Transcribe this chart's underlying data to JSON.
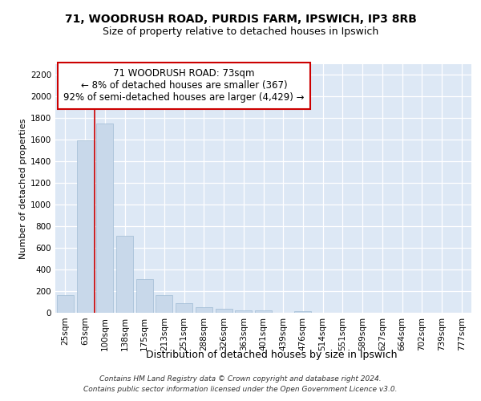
{
  "title1": "71, WOODRUSH ROAD, PURDIS FARM, IPSWICH, IP3 8RB",
  "title2": "Size of property relative to detached houses in Ipswich",
  "xlabel": "Distribution of detached houses by size in Ipswich",
  "ylabel": "Number of detached properties",
  "categories": [
    "25sqm",
    "63sqm",
    "100sqm",
    "138sqm",
    "175sqm",
    "213sqm",
    "251sqm",
    "288sqm",
    "326sqm",
    "363sqm",
    "401sqm",
    "439sqm",
    "476sqm",
    "514sqm",
    "551sqm",
    "589sqm",
    "627sqm",
    "664sqm",
    "702sqm",
    "739sqm",
    "777sqm"
  ],
  "values": [
    160,
    1595,
    1750,
    710,
    315,
    160,
    88,
    55,
    35,
    22,
    20,
    0,
    18,
    0,
    0,
    0,
    0,
    0,
    0,
    0,
    0
  ],
  "bar_color": "#c8d8ea",
  "bar_edge_color": "#a0bcd4",
  "vline_pos": 1.5,
  "vline_color": "#cc0000",
  "annotation_text": "71 WOODRUSH ROAD: 73sqm\n← 8% of detached houses are smaller (367)\n92% of semi-detached houses are larger (4,429) →",
  "annotation_box_facecolor": "#ffffff",
  "annotation_box_edgecolor": "#cc0000",
  "ylim_max": 2300,
  "yticks": [
    0,
    200,
    400,
    600,
    800,
    1000,
    1200,
    1400,
    1600,
    1800,
    2000,
    2200
  ],
  "axes_facecolor": "#dde8f5",
  "footer_line1": "Contains HM Land Registry data © Crown copyright and database right 2024.",
  "footer_line2": "Contains public sector information licensed under the Open Government Licence v3.0.",
  "title1_fontsize": 10,
  "title2_fontsize": 9,
  "xlabel_fontsize": 9,
  "ylabel_fontsize": 8,
  "tick_fontsize": 7.5,
  "annotation_fontsize": 8.5,
  "footer_fontsize": 6.5
}
